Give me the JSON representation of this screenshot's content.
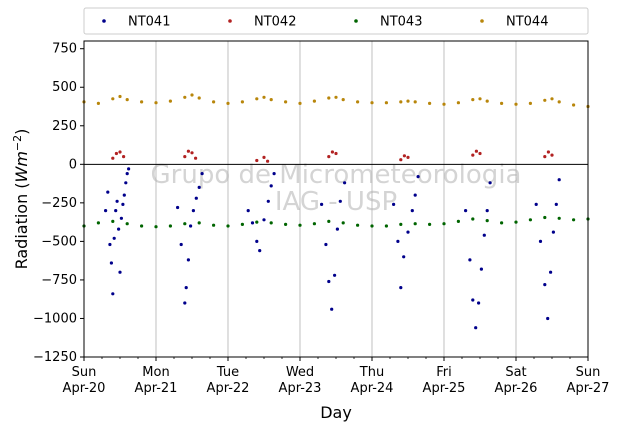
{
  "chart_data": {
    "type": "scatter",
    "xlabel": "Day",
    "ylabel_main": "Radiation (",
    "ylabel_unit": "Wm",
    "ylabel_exp": "−2",
    "ylabel_close": ")",
    "ylim": [
      -1250,
      800
    ],
    "yticks": [
      -1250,
      -1000,
      -750,
      -500,
      -250,
      0,
      250,
      500,
      750
    ],
    "ytick_labels": [
      "−1250",
      "−1000",
      "−750",
      "−500",
      "−250",
      "0",
      "250",
      "500",
      "750"
    ],
    "xlim": [
      0,
      7
    ],
    "xticks": [
      {
        "x": 0,
        "day": "Sun",
        "date": "Apr-20"
      },
      {
        "x": 1,
        "day": "Mon",
        "date": "Apr-21"
      },
      {
        "x": 2,
        "day": "Tue",
        "date": "Apr-22"
      },
      {
        "x": 3,
        "day": "Wed",
        "date": "Apr-23"
      },
      {
        "x": 4,
        "day": "Thu",
        "date": "Apr-24"
      },
      {
        "x": 5,
        "day": "Fri",
        "date": "Apr-25"
      },
      {
        "x": 6,
        "day": "Sat",
        "date": "Apr-26"
      },
      {
        "x": 7,
        "day": "Sun",
        "date": "Apr-27"
      }
    ],
    "grid": "vertical",
    "legend_position": "top",
    "zero_line": true,
    "watermark": [
      "Grupo de Micrometeorologia",
      "IAG - USP"
    ],
    "series": [
      {
        "name": "NT041",
        "color": "#00008b",
        "points": [
          [
            0.3,
            -300
          ],
          [
            0.33,
            -180
          ],
          [
            0.36,
            -520
          ],
          [
            0.38,
            -640
          ],
          [
            0.4,
            -840
          ],
          [
            0.42,
            -480
          ],
          [
            0.44,
            -300
          ],
          [
            0.46,
            -240
          ],
          [
            0.48,
            -420
          ],
          [
            0.5,
            -700
          ],
          [
            0.52,
            -350
          ],
          [
            0.54,
            -260
          ],
          [
            0.56,
            -200
          ],
          [
            0.58,
            -120
          ],
          [
            0.6,
            -60
          ],
          [
            0.62,
            -30
          ],
          [
            1.3,
            -280
          ],
          [
            1.35,
            -520
          ],
          [
            1.4,
            -900
          ],
          [
            1.42,
            -800
          ],
          [
            1.45,
            -620
          ],
          [
            1.48,
            -400
          ],
          [
            1.52,
            -300
          ],
          [
            1.56,
            -220
          ],
          [
            1.6,
            -150
          ],
          [
            1.64,
            -60
          ],
          [
            2.28,
            -300
          ],
          [
            2.34,
            -380
          ],
          [
            2.4,
            -500
          ],
          [
            2.44,
            -560
          ],
          [
            2.5,
            -360
          ],
          [
            2.56,
            -240
          ],
          [
            2.6,
            -140
          ],
          [
            2.64,
            -60
          ],
          [
            3.3,
            -260
          ],
          [
            3.36,
            -520
          ],
          [
            3.4,
            -760
          ],
          [
            3.44,
            -940
          ],
          [
            3.48,
            -720
          ],
          [
            3.52,
            -420
          ],
          [
            3.56,
            -240
          ],
          [
            3.62,
            -120
          ],
          [
            4.3,
            -260
          ],
          [
            4.36,
            -500
          ],
          [
            4.4,
            -800
          ],
          [
            4.44,
            -600
          ],
          [
            4.5,
            -440
          ],
          [
            4.56,
            -300
          ],
          [
            4.6,
            -200
          ],
          [
            4.64,
            -80
          ],
          [
            5.3,
            -300
          ],
          [
            5.36,
            -620
          ],
          [
            5.4,
            -880
          ],
          [
            5.44,
            -1060
          ],
          [
            5.48,
            -900
          ],
          [
            5.52,
            -680
          ],
          [
            5.56,
            -460
          ],
          [
            5.6,
            -300
          ],
          [
            5.64,
            -120
          ],
          [
            6.28,
            -260
          ],
          [
            6.34,
            -500
          ],
          [
            6.4,
            -780
          ],
          [
            6.44,
            -1000
          ],
          [
            6.48,
            -700
          ],
          [
            6.52,
            -440
          ],
          [
            6.56,
            -260
          ],
          [
            6.6,
            -100
          ]
        ]
      },
      {
        "name": "NT042",
        "color": "#b22222",
        "points": [
          [
            0.4,
            40
          ],
          [
            0.45,
            70
          ],
          [
            0.5,
            80
          ],
          [
            0.55,
            50
          ],
          [
            1.4,
            50
          ],
          [
            1.45,
            85
          ],
          [
            1.5,
            75
          ],
          [
            1.55,
            40
          ],
          [
            2.4,
            25
          ],
          [
            2.5,
            45
          ],
          [
            2.55,
            20
          ],
          [
            3.4,
            50
          ],
          [
            3.45,
            80
          ],
          [
            3.5,
            70
          ],
          [
            4.4,
            30
          ],
          [
            4.45,
            55
          ],
          [
            4.5,
            45
          ],
          [
            5.4,
            60
          ],
          [
            5.45,
            85
          ],
          [
            5.5,
            70
          ],
          [
            6.4,
            50
          ],
          [
            6.45,
            80
          ],
          [
            6.5,
            60
          ]
        ]
      },
      {
        "name": "NT043",
        "color": "#006400",
        "points": [
          [
            0.0,
            -400
          ],
          [
            0.2,
            -380
          ],
          [
            0.4,
            -370
          ],
          [
            0.6,
            -385
          ],
          [
            0.8,
            -400
          ],
          [
            1.0,
            -405
          ],
          [
            1.2,
            -400
          ],
          [
            1.4,
            -385
          ],
          [
            1.6,
            -380
          ],
          [
            1.8,
            -395
          ],
          [
            2.0,
            -400
          ],
          [
            2.2,
            -390
          ],
          [
            2.4,
            -375
          ],
          [
            2.6,
            -380
          ],
          [
            2.8,
            -390
          ],
          [
            3.0,
            -395
          ],
          [
            3.2,
            -385
          ],
          [
            3.4,
            -370
          ],
          [
            3.6,
            -380
          ],
          [
            3.8,
            -395
          ],
          [
            4.0,
            -400
          ],
          [
            4.2,
            -400
          ],
          [
            4.4,
            -390
          ],
          [
            4.6,
            -385
          ],
          [
            4.8,
            -390
          ],
          [
            5.0,
            -385
          ],
          [
            5.2,
            -370
          ],
          [
            5.4,
            -355
          ],
          [
            5.6,
            -365
          ],
          [
            5.8,
            -380
          ],
          [
            6.0,
            -375
          ],
          [
            6.2,
            -360
          ],
          [
            6.4,
            -345
          ],
          [
            6.6,
            -350
          ],
          [
            6.8,
            -360
          ],
          [
            7.0,
            -355
          ]
        ]
      },
      {
        "name": "NT044",
        "color": "#b8860b",
        "points": [
          [
            0.0,
            405
          ],
          [
            0.2,
            395
          ],
          [
            0.4,
            425
          ],
          [
            0.5,
            440
          ],
          [
            0.6,
            420
          ],
          [
            0.8,
            405
          ],
          [
            1.0,
            400
          ],
          [
            1.2,
            410
          ],
          [
            1.4,
            435
          ],
          [
            1.5,
            450
          ],
          [
            1.6,
            430
          ],
          [
            1.8,
            405
          ],
          [
            2.0,
            395
          ],
          [
            2.2,
            405
          ],
          [
            2.4,
            425
          ],
          [
            2.5,
            435
          ],
          [
            2.6,
            420
          ],
          [
            2.8,
            405
          ],
          [
            3.0,
            395
          ],
          [
            3.2,
            410
          ],
          [
            3.4,
            430
          ],
          [
            3.5,
            435
          ],
          [
            3.6,
            420
          ],
          [
            3.8,
            405
          ],
          [
            4.0,
            400
          ],
          [
            4.2,
            400
          ],
          [
            4.4,
            405
          ],
          [
            4.5,
            410
          ],
          [
            4.6,
            405
          ],
          [
            4.8,
            395
          ],
          [
            5.0,
            390
          ],
          [
            5.2,
            400
          ],
          [
            5.4,
            420
          ],
          [
            5.5,
            425
          ],
          [
            5.6,
            410
          ],
          [
            5.8,
            395
          ],
          [
            6.0,
            390
          ],
          [
            6.2,
            395
          ],
          [
            6.4,
            415
          ],
          [
            6.5,
            425
          ],
          [
            6.6,
            405
          ],
          [
            6.8,
            385
          ],
          [
            7.0,
            375
          ]
        ]
      }
    ]
  }
}
